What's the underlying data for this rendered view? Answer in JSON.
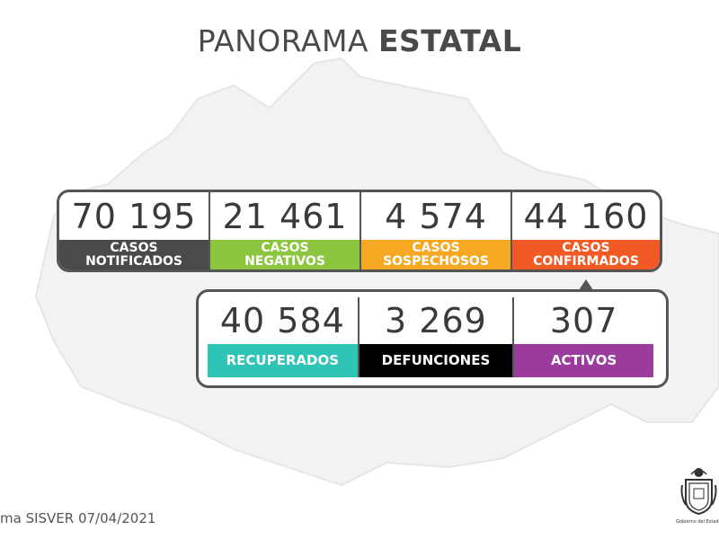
{
  "title": {
    "light": "PANORAMA ",
    "bold": "ESTATAL"
  },
  "top_stats": [
    {
      "value": "70 195",
      "line1": "CASOS",
      "line2": "NOTIFICADOS",
      "color": "#4a4a4a"
    },
    {
      "value": "21 461",
      "line1": "CASOS",
      "line2": "NEGATIVOS",
      "color": "#8cc63f"
    },
    {
      "value": "4 574",
      "line1": "CASOS",
      "line2": "SOSPECHOSOS",
      "color": "#f7a823"
    },
    {
      "value": "44 160",
      "line1": "CASOS",
      "line2": "CONFIRMADOS",
      "color": "#f15a24"
    }
  ],
  "bottom_stats": [
    {
      "value": "40 584",
      "label": "RECUPERADOS",
      "color": "#2ec4b6"
    },
    {
      "value": "3 269",
      "label": "DEFUNCIONES",
      "color": "#000000"
    },
    {
      "value": "307",
      "label": "ACTIVOS",
      "color": "#9b3b9b"
    }
  ],
  "footer": {
    "source": "ma SISVER 07/04/2021"
  },
  "emblem": {
    "caption": "Gobierno del Estado",
    "icon": "state-seal-icon"
  }
}
